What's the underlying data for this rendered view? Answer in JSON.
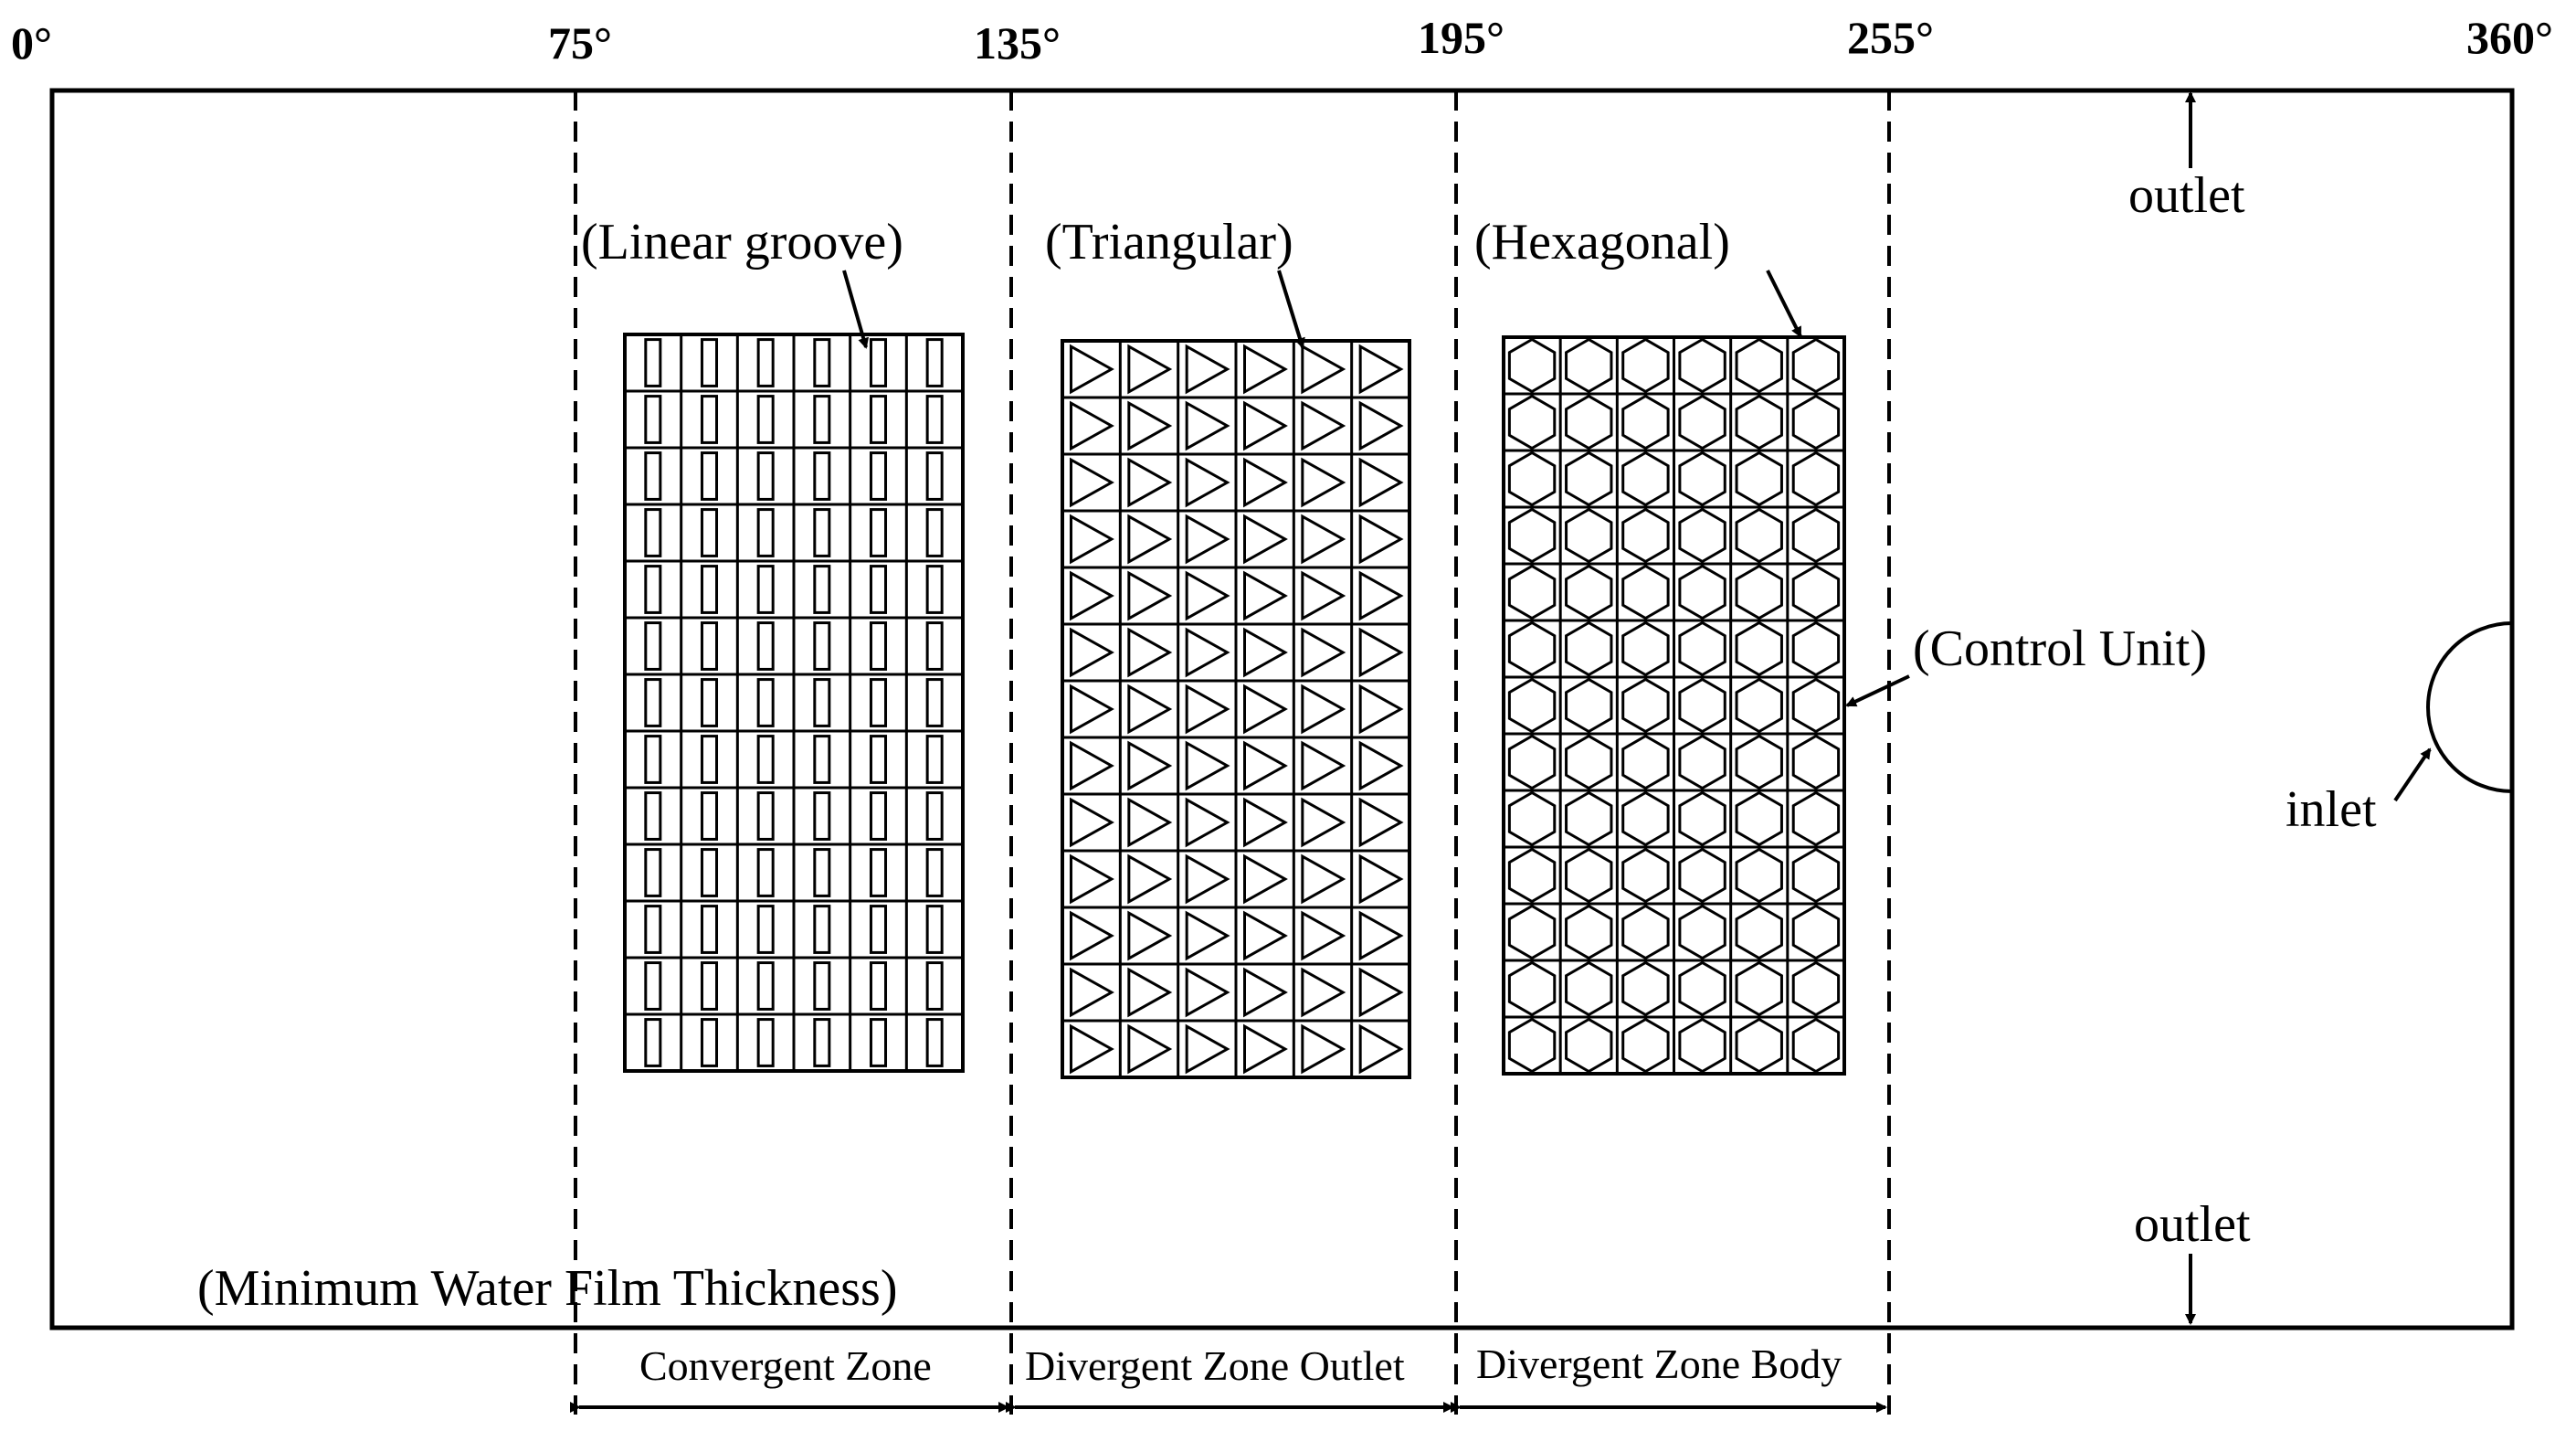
{
  "angles": [
    "0°",
    "75°",
    "135°",
    "195°",
    "255°",
    "360°"
  ],
  "texture_labels": {
    "linear": "(Linear groove)",
    "triangular": "(Triangular)",
    "hexagonal": "(Hexagonal)"
  },
  "control_unit": "(Control Unit)",
  "outlet_top": "outlet",
  "outlet_bottom": "outlet",
  "inlet": "inlet",
  "min_film": "(Minimum Water Film Thickness)",
  "zones": {
    "convergent": "Convergent Zone",
    "divergent_outlet": "Divergent Zone Outlet",
    "divergent_body": "Divergent Zone Body"
  },
  "grid": {
    "rows": 13,
    "cols": 6
  },
  "colors": {
    "ink": "#000000",
    "background": "#ffffff"
  }
}
